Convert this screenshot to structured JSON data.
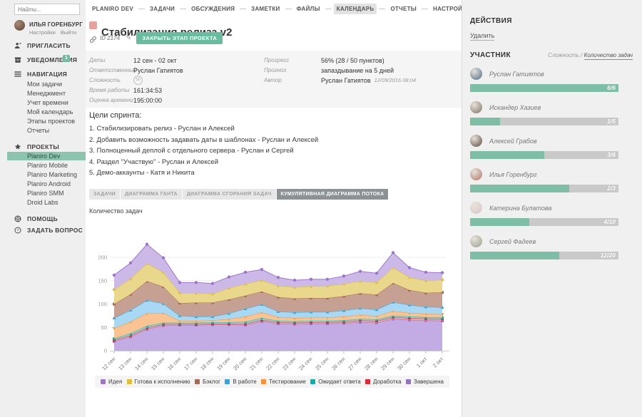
{
  "sidebar": {
    "search_placeholder": "Найти...",
    "user": {
      "name": "ИЛЬЯ ГОРЕНБУРГ",
      "settings_label": "Настройки",
      "logout_label": "Выйти"
    },
    "invite_label": "ПРИГЛАСИТЬ",
    "notifications_label": "УВЕДОМЛЕНИЯ",
    "notifications_badge": "1",
    "navigation_label": "НАВИГАЦИЯ",
    "navigation_items": [
      "Мои задачи",
      "Менеджмент",
      "Учет времени",
      "Мой календарь",
      "Этапы проектов",
      "Отчеты"
    ],
    "projects_label": "ПРОЕКТЫ",
    "projects_items": [
      "Planiro Dev",
      "Planiro Mobile",
      "Planiro Marketing",
      "Planiro Android",
      "Planiro SMM",
      "Droid Labs"
    ],
    "active_project": "Planiro Dev",
    "help_label": "ПОМОЩЬ",
    "ask_label": "ЗАДАТЬ ВОПРОС"
  },
  "topnav": {
    "tabs": [
      "PLANIRO DEV",
      "ЗАДАЧИ",
      "ОБСУЖДЕНИЯ",
      "ЗАМЕТКИ",
      "ФАЙЛЫ",
      "КАЛЕНДАРЬ",
      "ОТЧЕТЫ",
      "НАСТРОЙКИ"
    ],
    "active": "КАЛЕНДАРЬ"
  },
  "header": {
    "title": "Стабилизация релиза v2",
    "id_label": "ID 2174",
    "close_button_label": "ЗАКРЫТЬ ЭТАП ПРОЕКТА"
  },
  "details": {
    "left": [
      {
        "label": "Даты",
        "value": "12 сен - 02 окт"
      },
      {
        "label": "Ответственный",
        "value": "Руслан Гатиятов"
      },
      {
        "label": "Сложность",
        "value": "50",
        "type": "badge"
      },
      {
        "label": "Время работы",
        "value": "161:34:53"
      },
      {
        "label": "Оценка времени",
        "value": "195:00:00"
      }
    ],
    "right": [
      {
        "label": "Прогресс",
        "value": "56% (28 / 50 пунктов)"
      },
      {
        "label": "Прогноз",
        "value": "запаздывание на 5 дней"
      },
      {
        "label": "Автор",
        "value": "Руслан Гатиятов",
        "meta": "12/09/2016 08:04"
      }
    ]
  },
  "goals": {
    "title": "Цели спринта:",
    "items": [
      "1. Стабилизировать релиз - Руслан и Алексей",
      "2. Добавить возможность задавать даты в шаблонах - Руслан и Алексей",
      "3. Полноценный деплой с отдельного сервера - Руслан и Сергей",
      "4. Раздел \"Участвую\" - Руслан и Алексей",
      "5. Демо-аккаунты - Катя и Никита"
    ]
  },
  "view_tabs": {
    "tabs": [
      "ЗАДАЧИ",
      "ДИАГРАММА ГАНТА",
      "ДИАГРАММА СГОРАНИЯ ЗАДАЧ",
      "КУМУЛЯТИВНАЯ ДИАГРАММА ПОТОКА"
    ],
    "active": "КУМУЛЯТИВНАЯ ДИАГРАММА ПОТОКА"
  },
  "actions": {
    "title": "ДЕЙСТВИЯ",
    "delete_label": "Удалить"
  },
  "participants": {
    "title": "УЧАСТНИК",
    "toggle": {
      "complexity_label": "Сложность",
      "tasks_label": "Количество задач",
      "active": "Количество задач"
    },
    "items": [
      {
        "name": "Руслан Гатиятов",
        "label": "6/6",
        "done": 6,
        "total": 6,
        "percent": 100
      },
      {
        "name": "Искандер Хазиев",
        "label": "1/5",
        "done": 1,
        "total": 5,
        "percent": 20
      },
      {
        "name": "Алексей Грабов",
        "label": "3/6",
        "done": 3,
        "total": 6,
        "percent": 50
      },
      {
        "name": "Илья Горенбург",
        "label": "2/3",
        "done": 2,
        "total": 3,
        "percent": 67
      },
      {
        "name": "Катерина Булатова",
        "label": "4/10",
        "done": 4,
        "total": 10,
        "percent": 40
      },
      {
        "name": "Сергей Фадеев",
        "label": "12/20",
        "done": 12,
        "total": 20,
        "percent": 60
      }
    ]
  },
  "chart_data": {
    "type": "area",
    "stacked": true,
    "ylabel": "Количество задач",
    "legend_position": "bottom",
    "yticks": [
      0,
      50,
      100,
      150,
      200
    ],
    "ylim": [
      0,
      240
    ],
    "x": [
      "12 сен",
      "13 сен",
      "14 сен",
      "15 сен",
      "16 сен",
      "17 сен",
      "18 сен",
      "19 сен",
      "20 сен",
      "21 сен",
      "22 сен",
      "23 сен",
      "24 сен",
      "25 сен",
      "26 сен",
      "27 сен",
      "28 сен",
      "29 сен",
      "30 сен",
      "1 окт",
      "2 окт"
    ],
    "series": [
      {
        "name": "Идея",
        "color": "#9d76cc",
        "fill": "#cdb9e8",
        "marker": "circle",
        "values": [
          31,
          34,
          41,
          31,
          22,
          23,
          22,
          24,
          25,
          23,
          18,
          15,
          15,
          14,
          17,
          21,
          20,
          32,
          21,
          18,
          15
        ]
      },
      {
        "name": "Готова к исполнению",
        "color": "#dfbe30",
        "fill": "#e9d88c",
        "marker": "diamond",
        "values": [
          31,
          33,
          38,
          31,
          22,
          20,
          19,
          24,
          25,
          24,
          24,
          24,
          25,
          26,
          26,
          26,
          26,
          33,
          27,
          26,
          27
        ]
      },
      {
        "name": "Бэклог",
        "color": "#a66a55",
        "fill": "#c6a193",
        "marker": "square",
        "values": [
          30,
          34,
          41,
          36,
          27,
          30,
          30,
          30,
          28,
          28,
          31,
          30,
          30,
          30,
          31,
          32,
          32,
          41,
          32,
          30,
          32
        ]
      },
      {
        "name": "В работе",
        "color": "#33a6dd",
        "fill": "#a8d8f3",
        "marker": "triangle-up",
        "values": [
          22,
          25,
          28,
          20,
          11,
          9,
          8,
          12,
          17,
          17,
          12,
          12,
          12,
          12,
          13,
          14,
          14,
          19,
          17,
          15,
          15
        ]
      },
      {
        "name": "Тестирование",
        "color": "#f69233",
        "fill": "#fac393",
        "marker": "triangle-down",
        "values": [
          22,
          25,
          27,
          21,
          4,
          4,
          4,
          7,
          11,
          12,
          8,
          7,
          7,
          7,
          8,
          9,
          7,
          10,
          8,
          7,
          7
        ]
      },
      {
        "name": "Ожидает ответа",
        "color": "#0ab1ab",
        "fill": "#8fd9d6",
        "marker": "circle",
        "values": [
          3,
          4,
          4,
          3,
          3,
          3,
          3,
          3,
          4,
          4,
          3,
          3,
          3,
          3,
          3,
          3,
          3,
          3,
          3,
          3,
          3
        ]
      },
      {
        "name": "Доработка",
        "color": "#d92b31",
        "fill": "#efa3a6",
        "marker": "square",
        "values": [
          3,
          3,
          3,
          3,
          2,
          2,
          2,
          2,
          3,
          3,
          3,
          3,
          3,
          3,
          3,
          4,
          4,
          4,
          4,
          4,
          4
        ]
      },
      {
        "name": "Завершена",
        "color": "#9271c7",
        "fill": "#c3abe3",
        "marker": "square",
        "values": [
          20,
          30,
          46,
          54,
          55,
          55,
          56,
          56,
          55,
          63,
          58,
          57,
          58,
          58,
          59,
          61,
          60,
          68,
          66,
          65,
          64
        ]
      }
    ]
  }
}
